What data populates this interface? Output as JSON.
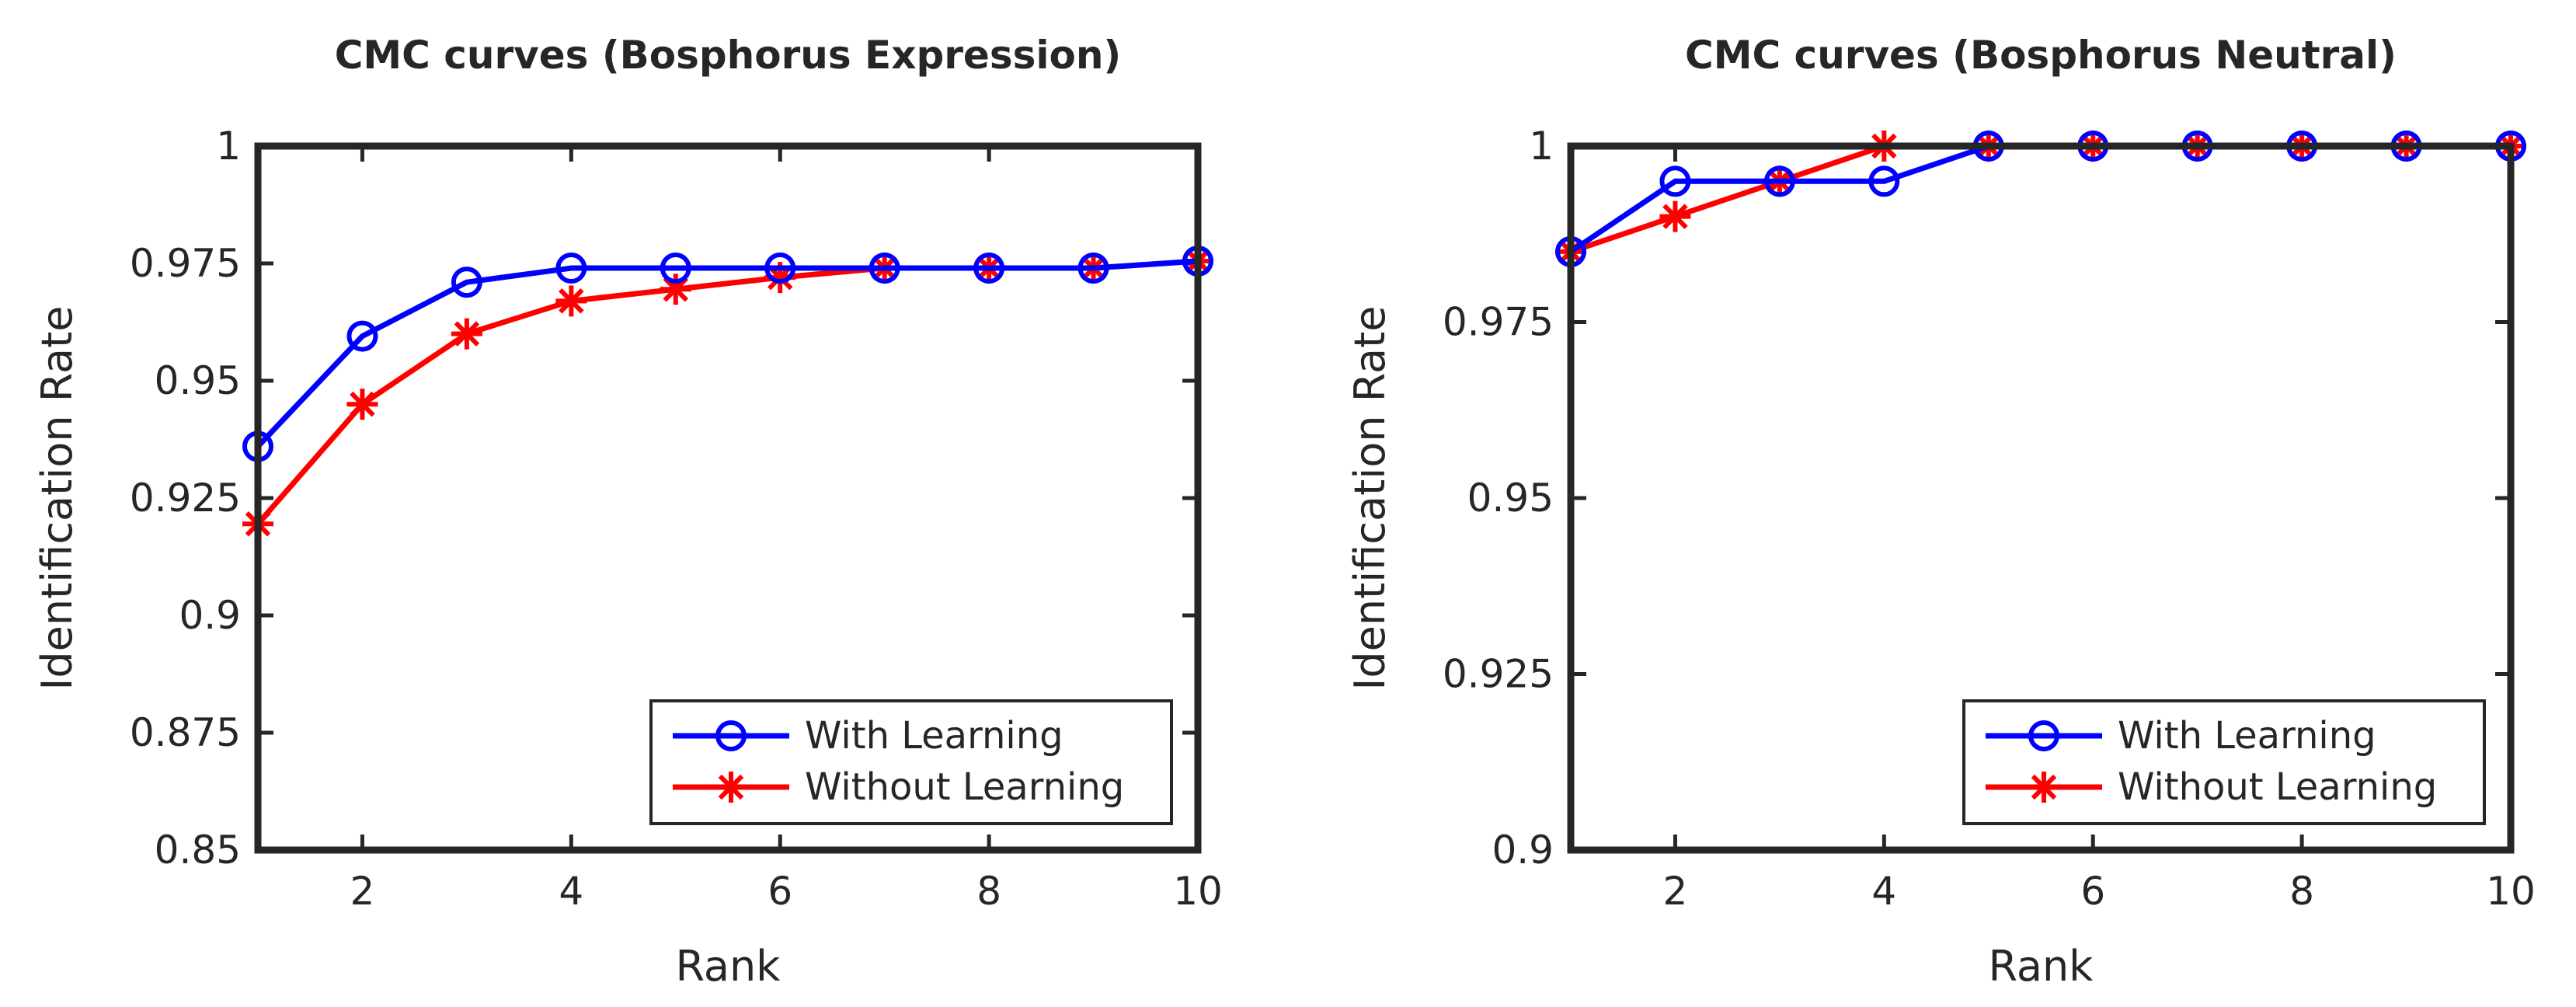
{
  "chart_data": [
    {
      "type": "line",
      "title": "CMC curves (Bosphorus Expression)",
      "xlabel": "Rank",
      "ylabel": "Identification Rate",
      "xlim": [
        1,
        10
      ],
      "ylim": [
        0.85,
        1
      ],
      "xticks": [
        2,
        4,
        6,
        8,
        10
      ],
      "yticks": [
        0.85,
        0.875,
        0.9,
        0.925,
        0.95,
        0.975,
        1
      ],
      "ytick_labels": [
        "0.85",
        "0.875",
        "0.9",
        "0.925",
        "0.95",
        "0.975",
        "1"
      ],
      "x": [
        1,
        2,
        3,
        4,
        5,
        6,
        7,
        8,
        9,
        10
      ],
      "series": [
        {
          "name": "With Learning",
          "color": "#0000ff",
          "marker": "circle",
          "values": [
            0.936,
            0.9595,
            0.971,
            0.974,
            0.974,
            0.974,
            0.974,
            0.974,
            0.974,
            0.9755
          ]
        },
        {
          "name": "Without Learning",
          "color": "#ff0000",
          "marker": "asterisk",
          "values": [
            0.9195,
            0.945,
            0.96,
            0.967,
            0.9695,
            0.972,
            0.974,
            0.974,
            0.974,
            0.9755
          ]
        }
      ],
      "legend": "bottom-right",
      "grid": false
    },
    {
      "type": "line",
      "title": "CMC curves (Bosphorus Neutral)",
      "xlabel": "Rank",
      "ylabel": "Identification Rate",
      "xlim": [
        1,
        10
      ],
      "ylim": [
        0.9,
        1
      ],
      "xticks": [
        2,
        4,
        6,
        8,
        10
      ],
      "yticks": [
        0.9,
        0.925,
        0.95,
        0.975,
        1
      ],
      "ytick_labels": [
        "0.9",
        "0.925",
        "0.95",
        "0.975",
        "1"
      ],
      "x": [
        1,
        2,
        3,
        4,
        5,
        6,
        7,
        8,
        9,
        10
      ],
      "series": [
        {
          "name": "With Learning",
          "color": "#0000ff",
          "marker": "circle",
          "values": [
            0.985,
            0.995,
            0.995,
            0.995,
            1,
            1,
            1,
            1,
            1,
            1
          ]
        },
        {
          "name": "Without Learning",
          "color": "#ff0000",
          "marker": "asterisk",
          "values": [
            0.985,
            0.99,
            0.995,
            1,
            1,
            1,
            1,
            1,
            1,
            1
          ]
        }
      ],
      "legend": "bottom-right",
      "grid": false
    }
  ]
}
